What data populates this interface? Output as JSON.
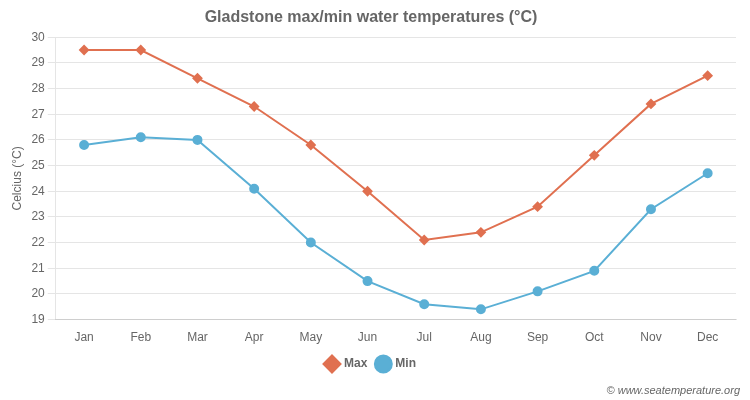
{
  "chart_data": {
    "type": "line",
    "title": "Gladstone max/min water temperatures (°C)",
    "ylabel": "Celcius (°C)",
    "annotations": [
      "© www.seatemperature.org"
    ],
    "categories": [
      "Jan",
      "Feb",
      "Mar",
      "Apr",
      "May",
      "Jun",
      "Jul",
      "Aug",
      "Sep",
      "Oct",
      "Nov",
      "Dec"
    ],
    "series": [
      {
        "name": "Max",
        "color": "#e07050",
        "marker": "diamond",
        "line_style": "solid",
        "values": [
          29.5,
          29.5,
          28.4,
          27.3,
          25.8,
          24.0,
          22.1,
          22.4,
          23.4,
          25.4,
          27.4,
          28.5
        ]
      },
      {
        "name": "Min",
        "color": "#5aafd5",
        "marker": "circle",
        "line_style": "solid",
        "values": [
          25.8,
          26.1,
          26.0,
          24.1,
          22.0,
          20.5,
          19.6,
          19.4,
          20.1,
          20.9,
          23.3,
          24.7
        ]
      }
    ],
    "ylim": [
      19,
      30
    ],
    "yticks": [
      19,
      20,
      21,
      22,
      23,
      24,
      25,
      26,
      27,
      28,
      29,
      30
    ],
    "grid": true,
    "legend": "bottom"
  }
}
